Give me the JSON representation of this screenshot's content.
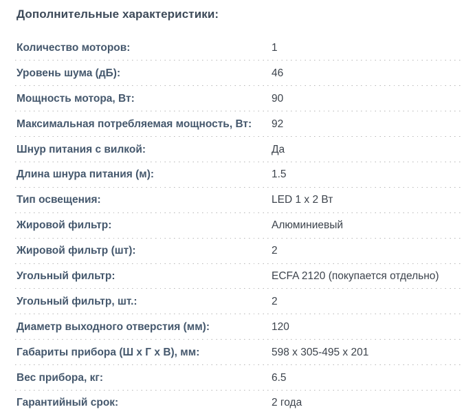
{
  "section": {
    "title": "Дополнительные характеристики:"
  },
  "rows": [
    {
      "label": "Количество моторов:",
      "value": "1"
    },
    {
      "label": "Уровень шума (дБ):",
      "value": "46"
    },
    {
      "label": "Мощность мотора, Вт:",
      "value": "90"
    },
    {
      "label": "Максимальная потребляемая мощность, Вт:",
      "value": "92"
    },
    {
      "label": "Шнур питания с вилкой:",
      "value": "Да"
    },
    {
      "label": "Длина шнура питания (м):",
      "value": "1.5"
    },
    {
      "label": "Тип освещения:",
      "value": "LED 1 x 2 Вт"
    },
    {
      "label": "Жировой фильтр:",
      "value": "Алюминиевый"
    },
    {
      "label": "Жировой фильтр (шт):",
      "value": "2"
    },
    {
      "label": "Угольный фильтр:",
      "value": "ECFA 2120 (покупается отдельно)"
    },
    {
      "label": "Угольный фильтр, шт.:",
      "value": "2"
    },
    {
      "label": "Диаметр выходного отверстия (мм):",
      "value": "120"
    },
    {
      "label": "Габариты прибора (Ш х Г х В), мм:",
      "value": "598 x 305-495 x 201"
    },
    {
      "label": "Вес прибора, кг:",
      "value": "6.5"
    },
    {
      "label": "Гарантийный срок:",
      "value": "2 года"
    }
  ],
  "colors": {
    "title": "#3d4a59",
    "label": "#45586d",
    "value": "#3c434c",
    "divider": "#b4b4b4",
    "background": "#ffffff"
  }
}
